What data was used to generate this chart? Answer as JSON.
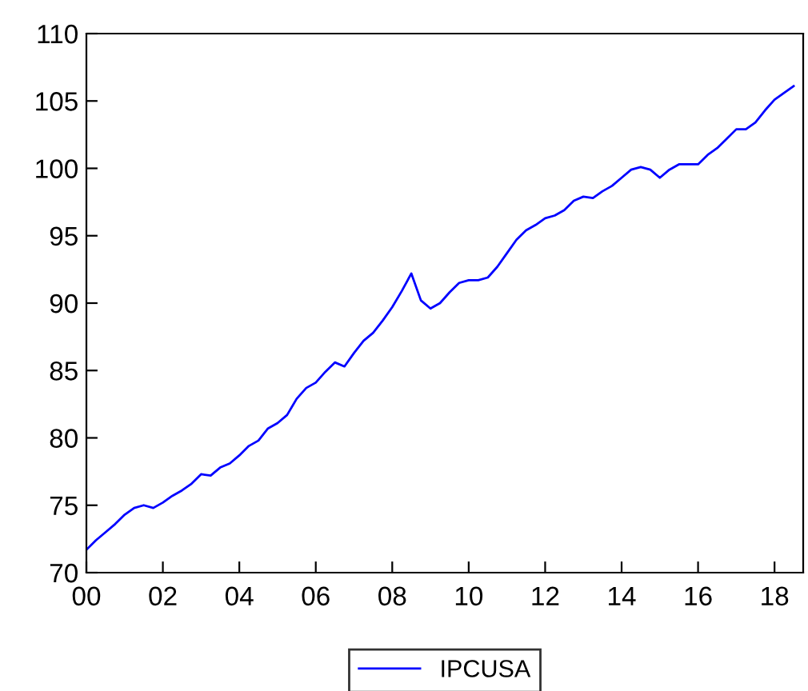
{
  "chart_data": {
    "type": "line",
    "x": [
      2000.0,
      2000.25,
      2000.5,
      2000.75,
      2001.0,
      2001.25,
      2001.5,
      2001.75,
      2002.0,
      2002.25,
      2002.5,
      2002.75,
      2003.0,
      2003.25,
      2003.5,
      2003.75,
      2004.0,
      2004.25,
      2004.5,
      2004.75,
      2005.0,
      2005.25,
      2005.5,
      2005.75,
      2006.0,
      2006.25,
      2006.5,
      2006.75,
      2007.0,
      2007.25,
      2007.5,
      2007.75,
      2008.0,
      2008.25,
      2008.5,
      2008.75,
      2009.0,
      2009.25,
      2009.5,
      2009.75,
      2010.0,
      2010.25,
      2010.5,
      2010.75,
      2011.0,
      2011.25,
      2011.5,
      2011.75,
      2012.0,
      2012.25,
      2012.5,
      2012.75,
      2013.0,
      2013.25,
      2013.5,
      2013.75,
      2014.0,
      2014.25,
      2014.5,
      2014.75,
      2015.0,
      2015.25,
      2015.5,
      2015.75,
      2016.0,
      2016.25,
      2016.5,
      2016.75,
      2017.0,
      2017.25,
      2017.5,
      2017.75,
      2018.0,
      2018.25,
      2018.5
    ],
    "series": [
      {
        "name": "IPCUSA",
        "color": "#0000ff",
        "values": [
          71.7,
          72.4,
          73.0,
          73.6,
          74.3,
          74.8,
          75.0,
          74.8,
          75.2,
          75.7,
          76.1,
          76.6,
          77.3,
          77.2,
          77.8,
          78.1,
          78.7,
          79.4,
          79.8,
          80.7,
          81.1,
          81.7,
          82.9,
          83.7,
          84.1,
          84.9,
          85.6,
          85.3,
          86.3,
          87.2,
          87.8,
          88.7,
          89.7,
          90.9,
          92.2,
          90.2,
          89.6,
          90.0,
          90.8,
          91.5,
          91.7,
          91.7,
          91.9,
          92.7,
          93.7,
          94.7,
          95.4,
          95.8,
          96.3,
          96.5,
          96.9,
          97.6,
          97.9,
          97.8,
          98.3,
          98.7,
          99.3,
          99.9,
          100.1,
          99.9,
          99.3,
          99.9,
          100.3,
          100.3,
          100.3,
          101.0,
          101.5,
          102.2,
          102.9,
          102.9,
          103.4,
          104.3,
          105.1,
          105.6,
          106.1
        ]
      }
    ],
    "xlim": [
      2000,
      2018.75
    ],
    "xticks": [
      {
        "value": 2000,
        "label": "00"
      },
      {
        "value": 2002,
        "label": "02"
      },
      {
        "value": 2004,
        "label": "04"
      },
      {
        "value": 2006,
        "label": "06"
      },
      {
        "value": 2008,
        "label": "08"
      },
      {
        "value": 2010,
        "label": "10"
      },
      {
        "value": 2012,
        "label": "12"
      },
      {
        "value": 2014,
        "label": "14"
      },
      {
        "value": 2016,
        "label": "16"
      },
      {
        "value": 2018,
        "label": "18"
      }
    ],
    "ylim": [
      70,
      110
    ],
    "yticks": [
      70,
      75,
      80,
      85,
      90,
      95,
      100,
      105,
      110
    ],
    "legend": "bottom",
    "grid": false,
    "line_style": "solid",
    "marker": "none"
  }
}
